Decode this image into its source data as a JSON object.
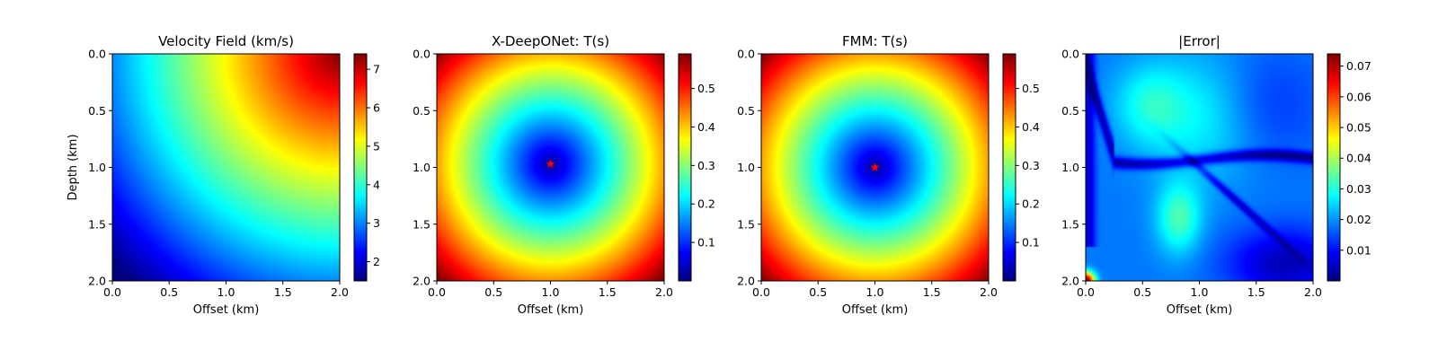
{
  "colormap": "jet",
  "chart_data": [
    {
      "type": "heatmap",
      "field": "velocity",
      "title": "Velocity Field (km/s)",
      "xlabel": "Offset (km)",
      "ylabel": "Depth (km)",
      "xlim": [
        0,
        2
      ],
      "ylim": [
        2,
        0
      ],
      "xticks": [
        "0.0",
        "0.5",
        "1.0",
        "1.5",
        "2.0"
      ],
      "yticks": [
        "0.0",
        "0.5",
        "1.0",
        "1.5",
        "2.0"
      ],
      "colorbar": {
        "min": 1.5,
        "max": 7.4,
        "ticks": [
          2,
          3,
          4,
          5,
          6,
          7
        ]
      },
      "source": null
    },
    {
      "type": "heatmap",
      "field": "traveltime_pred",
      "title": "X-DeepONet: T(s)",
      "xlabel": "Offset (km)",
      "ylabel": "",
      "xlim": [
        0,
        2
      ],
      "ylim": [
        2,
        0
      ],
      "xticks": [
        "0.0",
        "0.5",
        "1.0",
        "1.5",
        "2.0"
      ],
      "yticks": [
        "0.0",
        "0.5",
        "1.0",
        "1.5",
        "2.0"
      ],
      "colorbar": {
        "min": 0.0,
        "max": 0.59,
        "ticks": [
          0.1,
          0.2,
          0.3,
          0.4,
          0.5
        ]
      },
      "source": {
        "x": 1.0,
        "z": 0.97
      }
    },
    {
      "type": "heatmap",
      "field": "traveltime_fmm",
      "title": "FMM: T(s)",
      "xlabel": "Offset (km)",
      "ylabel": "",
      "xlim": [
        0,
        2
      ],
      "ylim": [
        2,
        0
      ],
      "xticks": [
        "0.0",
        "0.5",
        "1.0",
        "1.5",
        "2.0"
      ],
      "yticks": [
        "0.0",
        "0.5",
        "1.0",
        "1.5",
        "2.0"
      ],
      "colorbar": {
        "min": 0.0,
        "max": 0.59,
        "ticks": [
          0.1,
          0.2,
          0.3,
          0.4,
          0.5
        ]
      },
      "source": {
        "x": 1.0,
        "z": 1.0
      }
    },
    {
      "type": "heatmap",
      "field": "abs_error",
      "title": "|Error|",
      "xlabel": "Offset (km)",
      "ylabel": "",
      "xlim": [
        0,
        2
      ],
      "ylim": [
        2,
        0
      ],
      "xticks": [
        "0.0",
        "0.5",
        "1.0",
        "1.5",
        "2.0"
      ],
      "yticks": [
        "0.0",
        "0.5",
        "1.0",
        "1.5",
        "2.0"
      ],
      "colorbar": {
        "min": 0.0,
        "max": 0.074,
        "ticks": [
          0.01,
          0.02,
          0.03,
          0.04,
          0.05,
          0.06,
          0.07
        ]
      },
      "source": null
    }
  ]
}
